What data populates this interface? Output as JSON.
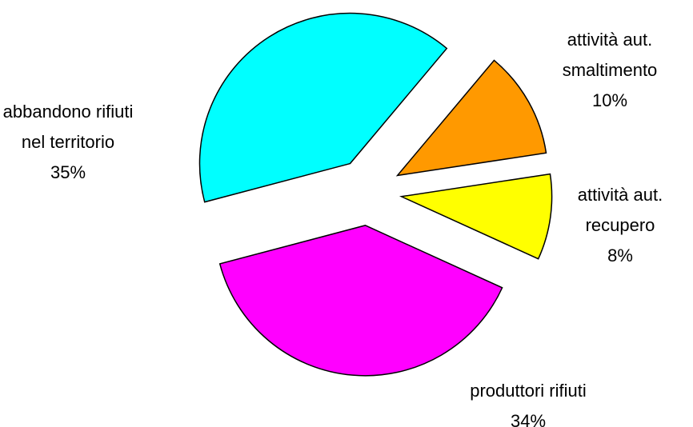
{
  "chart_data": {
    "type": "pie",
    "categories": [
      "attività aut. smaltimento",
      "attività aut. recupero",
      "produttori rifiuti",
      "abbandono rifiuti nel territorio"
    ],
    "values": [
      10,
      8,
      34,
      35
    ],
    "value_labels": [
      "10%",
      "8%",
      "34%",
      "35%"
    ],
    "colors": [
      "#ff9900",
      "#ffff00",
      "#ff00ff",
      "#00ffff"
    ]
  }
}
